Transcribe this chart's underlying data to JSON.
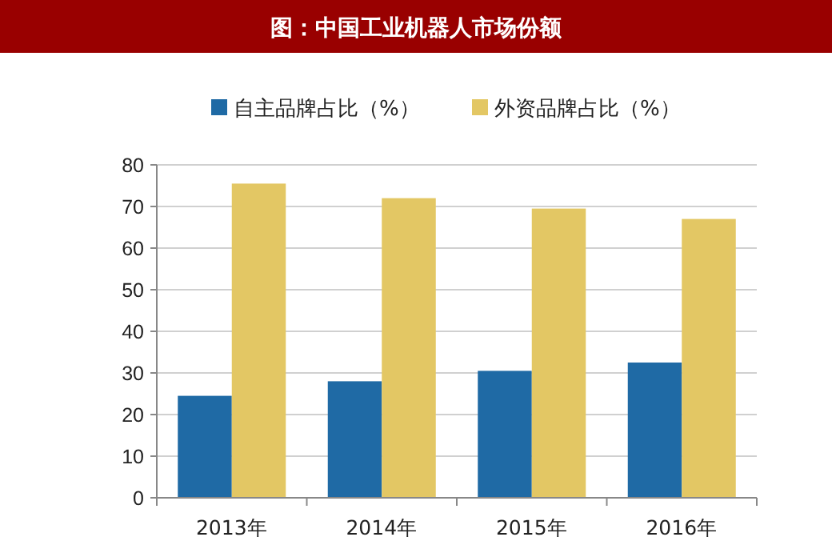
{
  "chart_data": {
    "type": "bar",
    "title": "图：中国工业机器人市场份额",
    "categories": [
      "2013年",
      "2014年",
      "2015年",
      "2016年"
    ],
    "series": [
      {
        "name": "自主品牌占比（%）",
        "color": "#1f6aa5",
        "values": [
          24.5,
          28,
          30.5,
          32.5
        ]
      },
      {
        "name": "外资品牌占比（%）",
        "color": "#e3c764",
        "values": [
          75.5,
          72,
          69.5,
          67
        ]
      }
    ],
    "ylim": [
      0,
      80
    ],
    "yticks": [
      0,
      10,
      20,
      30,
      40,
      50,
      60,
      70,
      80
    ],
    "grid": "y",
    "legend": "top"
  }
}
